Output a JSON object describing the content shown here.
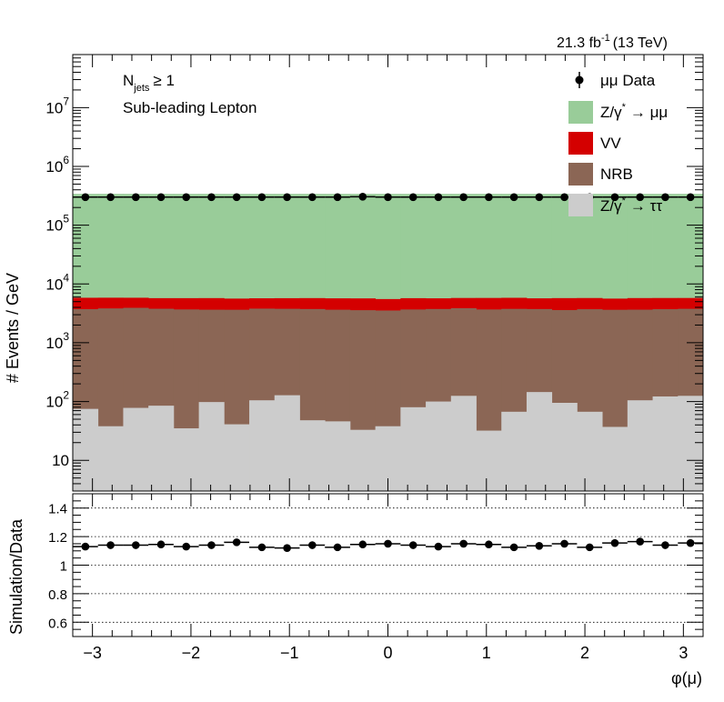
{
  "header": {
    "lumi": "21.3 fb",
    "lumi_exp": "-1",
    "energy": "(13 TeV)"
  },
  "annotations": {
    "njets_main": "N",
    "njets_sub": "jets",
    "njets_rest": "≥ 1",
    "selection": "Sub-leading Lepton"
  },
  "legend": {
    "data": "μμ Data",
    "zmm": "Z/γ",
    "zmm_sup": "*",
    "zmm_rest": "→ μμ",
    "vv": "VV",
    "nrb": "NRB",
    "ztt": "Z/γ",
    "ztt_sup": "*",
    "ztt_rest": "→ ττ"
  },
  "colors": {
    "zmm": "#99cc99",
    "vv": "#d40000",
    "nrb": "#8b6655",
    "ztt": "#cccccc",
    "data": "#000000"
  },
  "chart_data": [
    {
      "type": "area",
      "title": "",
      "ylabel": "# Events / GeV",
      "xlabel": "",
      "yscale": "log",
      "ylim": [
        3,
        80000000
      ],
      "xlim": [
        -3.2,
        3.2
      ],
      "x_ticks": [],
      "y_ticks": [
        {
          "v": 10,
          "base": "10",
          "exp": ""
        },
        {
          "v": 100,
          "base": "10",
          "exp": "2"
        },
        {
          "v": 1000,
          "base": "10",
          "exp": "3"
        },
        {
          "v": 10000,
          "base": "10",
          "exp": "4"
        },
        {
          "v": 100000,
          "base": "10",
          "exp": "5"
        },
        {
          "v": 1000000,
          "base": "10",
          "exp": "6"
        },
        {
          "v": 10000000,
          "base": "10",
          "exp": "7"
        }
      ],
      "bin_edges": [
        -3.2,
        -2.944,
        -2.688,
        -2.432,
        -2.176,
        -1.92,
        -1.664,
        -1.408,
        -1.152,
        -0.896,
        -0.64,
        -0.384,
        -0.128,
        0.128,
        0.384,
        0.64,
        0.896,
        1.152,
        1.408,
        1.664,
        1.92,
        2.176,
        2.432,
        2.688,
        2.944,
        3.2
      ],
      "series": [
        {
          "name": "Z/γ* → ττ",
          "key": "ztt",
          "values": [
            75,
            38,
            78,
            85,
            35,
            98,
            41,
            105,
            128,
            48,
            46,
            33,
            38,
            80,
            100,
            125,
            32,
            67,
            145,
            95,
            67,
            37,
            105,
            122,
            125
          ]
        },
        {
          "name": "NRB",
          "key": "nrb",
          "values": [
            3650,
            3800,
            3850,
            3700,
            3650,
            3550,
            3600,
            3700,
            3650,
            3700,
            3600,
            3550,
            3500,
            3600,
            3650,
            3750,
            3650,
            3700,
            3600,
            3500,
            3650,
            3600,
            3550,
            3600,
            3650
          ]
        },
        {
          "name": "VV",
          "key": "vv",
          "values": [
            2100,
            2000,
            1900,
            1950,
            2050,
            2100,
            2000,
            1900,
            1950,
            2000,
            2050,
            2100,
            2000,
            2050,
            1950,
            1900,
            2100,
            2050,
            1950,
            2150,
            2050,
            2000,
            2100,
            2050,
            2000
          ]
        },
        {
          "name": "Z/γ* → μμ",
          "key": "zmm",
          "values": [
            335000,
            335000,
            335000,
            335000,
            335000,
            335000,
            335000,
            335000,
            335000,
            335000,
            335000,
            335000,
            335000,
            335000,
            335000,
            335000,
            335000,
            335000,
            335000,
            335000,
            335000,
            335000,
            335000,
            335000,
            335000
          ]
        }
      ],
      "data_points": {
        "name": "μμ Data",
        "x": [
          -3.072,
          -2.816,
          -2.56,
          -2.304,
          -2.048,
          -1.792,
          -1.536,
          -1.28,
          -1.024,
          -0.768,
          -0.512,
          -0.256,
          0,
          0.256,
          0.512,
          0.768,
          1.024,
          1.28,
          1.536,
          1.792,
          2.048,
          2.304,
          2.56,
          2.816,
          3.072
        ],
        "y": [
          300000,
          300000,
          300000,
          300000,
          300000,
          300000,
          300000,
          300000,
          300000,
          300000,
          300000,
          305000,
          300000,
          300000,
          300000,
          300000,
          300000,
          300000,
          300000,
          300000,
          300000,
          300000,
          300000,
          300000,
          300000
        ]
      }
    },
    {
      "type": "scatter",
      "title": "",
      "ylabel": "Simulation/Data",
      "xlabel": "φ(μ)",
      "yscale": "linear",
      "ylim": [
        0.5,
        1.5
      ],
      "xlim": [
        -3.2,
        3.2
      ],
      "x_ticks": [
        {
          "v": -3,
          "label": "−3"
        },
        {
          "v": -2,
          "label": "−2"
        },
        {
          "v": -1,
          "label": "−1"
        },
        {
          "v": 0,
          "label": "0"
        },
        {
          "v": 1,
          "label": "1"
        },
        {
          "v": 2,
          "label": "2"
        },
        {
          "v": 3,
          "label": "3"
        }
      ],
      "y_ticks": [
        {
          "v": 0.6,
          "label": "0.6"
        },
        {
          "v": 0.8,
          "label": "0.8"
        },
        {
          "v": 1.0,
          "label": "1"
        },
        {
          "v": 1.2,
          "label": "1.2"
        },
        {
          "v": 1.4,
          "label": "1.4"
        }
      ],
      "reference_line": 1.0,
      "grid": true,
      "points": {
        "x": [
          -3.072,
          -2.816,
          -2.56,
          -2.304,
          -2.048,
          -1.792,
          -1.536,
          -1.28,
          -1.024,
          -0.768,
          -0.512,
          -0.256,
          0,
          0.256,
          0.512,
          0.768,
          1.024,
          1.28,
          1.536,
          1.792,
          2.048,
          2.304,
          2.56,
          2.816,
          3.072
        ],
        "y": [
          1.13,
          1.14,
          1.14,
          1.145,
          1.13,
          1.14,
          1.16,
          1.125,
          1.12,
          1.14,
          1.125,
          1.145,
          1.15,
          1.14,
          1.13,
          1.15,
          1.145,
          1.125,
          1.135,
          1.15,
          1.125,
          1.155,
          1.165,
          1.14,
          1.155
        ]
      }
    }
  ]
}
